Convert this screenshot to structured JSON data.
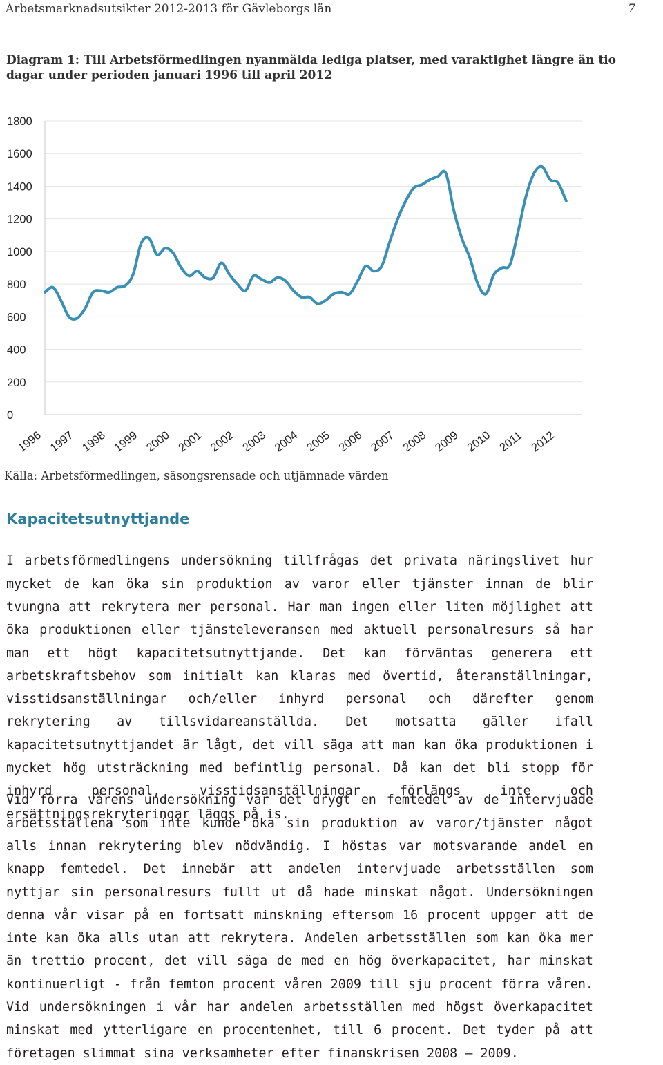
{
  "header": {
    "document_title": "Arbetsmarknadsutsikter 2012-2013 för Gävleborgs län",
    "page_number": "7"
  },
  "diagram": {
    "title": "Diagram 1: Till Arbetsförmedlingen nyanmälda lediga platser, med varaktighet längre än tio dagar under perioden januari 1996 till april 2012",
    "source": "Källa: Arbetsförmedlingen, säsongsrensade och utjämnade värden"
  },
  "chart_data": {
    "type": "line",
    "title": "",
    "xlabel": "",
    "ylabel": "",
    "ylim": [
      0,
      1800
    ],
    "yticks": [
      0,
      200,
      400,
      600,
      800,
      1000,
      1200,
      1400,
      1600,
      1800
    ],
    "xtick_labels": [
      "1996",
      "1997",
      "1998",
      "1999",
      "2000",
      "2001",
      "2002",
      "2003",
      "2004",
      "2005",
      "2006",
      "2007",
      "2008",
      "2009",
      "2010",
      "2011",
      "2012"
    ],
    "grid": true,
    "line_color": "#3a8fb5",
    "series": [
      {
        "x": [
          1996.0,
          1996.25,
          1996.5,
          1996.75,
          1997.0,
          1997.25,
          1997.5,
          1997.75,
          1998.0,
          1998.25,
          1998.5,
          1998.75,
          1999.0,
          1999.25,
          1999.5,
          1999.75,
          2000.0,
          2000.25,
          2000.5,
          2000.75,
          2001.0,
          2001.25,
          2001.5,
          2001.75,
          2002.0,
          2002.25,
          2002.5,
          2002.75,
          2003.0,
          2003.25,
          2003.5,
          2003.75,
          2004.0,
          2004.25,
          2004.5,
          2004.75,
          2005.0,
          2005.25,
          2005.5,
          2005.75,
          2006.0,
          2006.25,
          2006.5,
          2006.75,
          2007.0,
          2007.25,
          2007.5,
          2007.75,
          2008.0,
          2008.25,
          2008.5,
          2008.75,
          2009.0,
          2009.25,
          2009.5,
          2009.75,
          2010.0,
          2010.25,
          2010.5,
          2010.75,
          2011.0,
          2011.25,
          2011.5,
          2011.75,
          2012.0,
          2012.25
        ],
        "y": [
          750,
          780,
          700,
          600,
          590,
          650,
          750,
          760,
          750,
          780,
          790,
          860,
          1050,
          1080,
          980,
          1020,
          990,
          900,
          850,
          880,
          840,
          840,
          930,
          860,
          800,
          760,
          850,
          830,
          810,
          840,
          820,
          760,
          720,
          720,
          680,
          700,
          740,
          750,
          740,
          820,
          910,
          880,
          910,
          1060,
          1200,
          1310,
          1390,
          1410,
          1440,
          1460,
          1480,
          1250,
          1080,
          960,
          800,
          740,
          860,
          900,
          920,
          1120,
          1340,
          1480,
          1520,
          1440,
          1420,
          1310
        ]
      }
    ]
  },
  "section": {
    "heading": "Kapacitetsutnyttjande",
    "paragraph1": "I arbetsförmedlingens undersökning tillfrågas det privata näringslivet hur mycket de kan öka sin produktion av varor eller tjänster innan de blir tvungna att rekrytera mer personal. Har man ingen eller liten möjlighet att öka produktionen eller tjänsteleveransen med aktuell personalresurs så har man ett högt kapacitetsutnyttjande. Det kan förväntas generera ett arbetskraftsbehov som initialt kan klaras med övertid, återanställningar, visstidsanställningar och/eller inhyrd personal och därefter genom rekrytering av tillsvidareanställda. Det motsatta gäller ifall kapacitetsutnyttjandet är lågt, det vill säga att man kan öka produktionen i mycket hög utsträckning med befintlig personal. Då kan det bli stopp för inhyrd personal, visstidsanställningar förlängs inte och ersättningsrekryteringar läggs på is.",
    "paragraph2": "Vid förra vårens undersökning var det drygt en femtedel av de intervjuade arbetsställena som inte kunde öka sin produktion av varor/tjänster något alls innan rekrytering blev nödvändig. I höstas var motsvarande andel en knapp femtedel. Det innebär att andelen intervjuade arbetsställen som nyttjar sin personalresurs fullt ut då hade minskat något. Undersökningen denna vår visar på en fortsatt minskning eftersom 16 procent uppger att de inte kan öka alls utan att rekrytera. Andelen arbetsställen som kan öka mer än trettio procent, det vill säga de med en hög överkapacitet, har minskat kontinuerligt - från femton procent våren 2009 till sju procent förra våren. Vid undersökningen i vår har andelen arbetsställen med högst överkapacitet minskat med ytterligare en procentenhet, till 6 procent. Det tyder på att företagen slimmat sina verksamheter efter finanskrisen 2008 – 2009."
  }
}
